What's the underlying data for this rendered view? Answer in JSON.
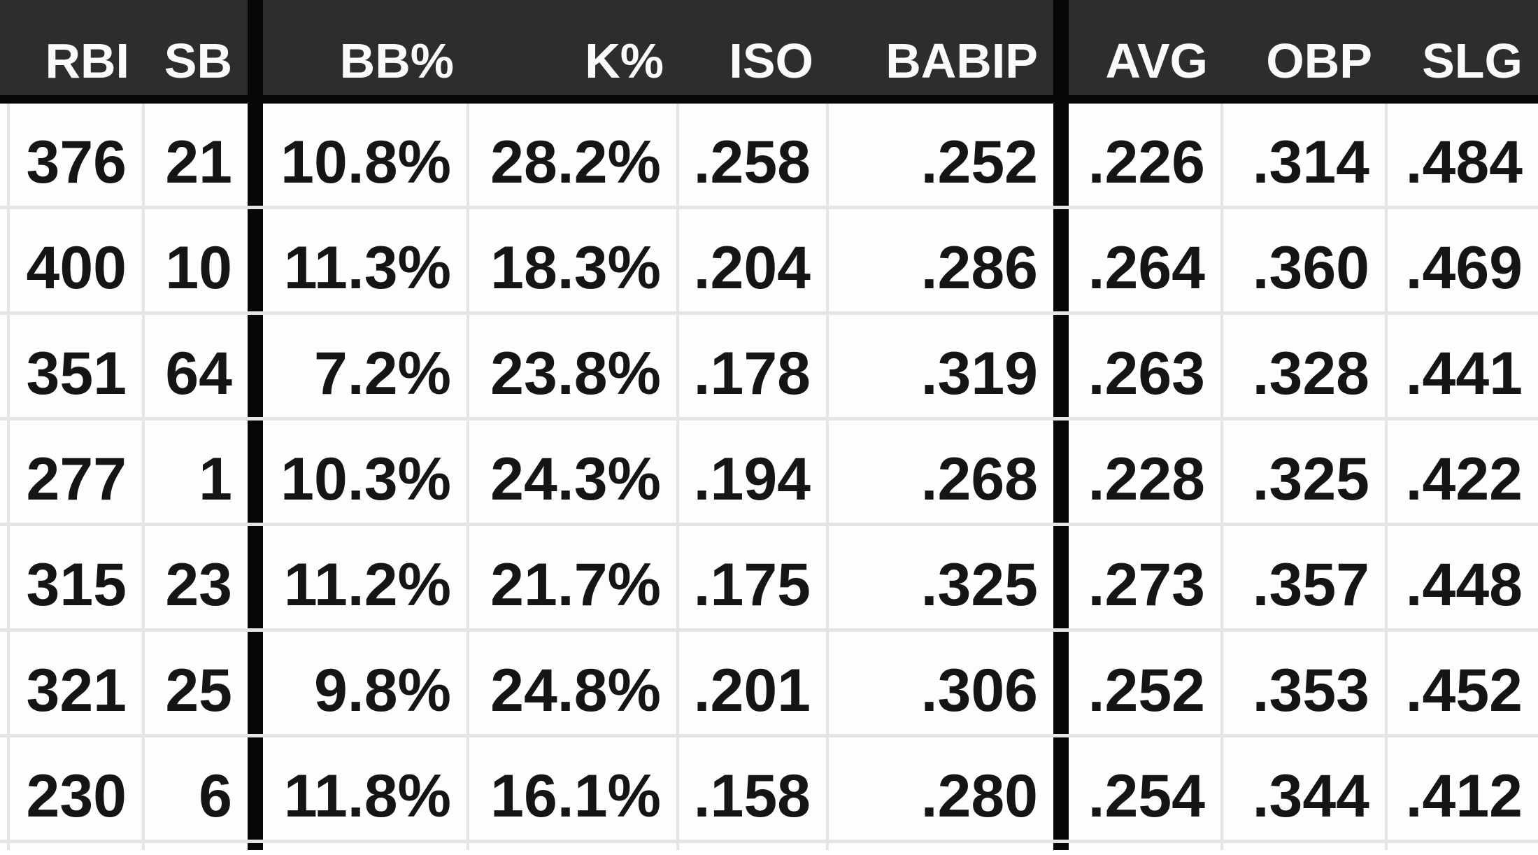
{
  "table": {
    "headers": [
      "RBI",
      "SB",
      "BB%",
      "K%",
      "ISO",
      "BABIP",
      "AVG",
      "OBP",
      "SLG"
    ],
    "column_groups": [
      [
        "RBI",
        "SB"
      ],
      [
        "BB%",
        "K%",
        "ISO",
        "BABIP"
      ],
      [
        "AVG",
        "OBP",
        "SLG"
      ]
    ],
    "rows": [
      [
        "376",
        "21",
        "10.8%",
        "28.2%",
        ".258",
        ".252",
        ".226",
        ".314",
        ".484"
      ],
      [
        "400",
        "10",
        "11.3%",
        "18.3%",
        ".204",
        ".286",
        ".264",
        ".360",
        ".469"
      ],
      [
        "351",
        "64",
        "7.2%",
        "23.8%",
        ".178",
        ".319",
        ".263",
        ".328",
        ".441"
      ],
      [
        "277",
        "1",
        "10.3%",
        "24.3%",
        ".194",
        ".268",
        ".228",
        ".325",
        ".422"
      ],
      [
        "315",
        "23",
        "11.2%",
        "21.7%",
        ".175",
        ".325",
        ".273",
        ".357",
        ".448"
      ],
      [
        "321",
        "25",
        "9.8%",
        "24.8%",
        ".201",
        ".306",
        ".252",
        ".353",
        ".452"
      ],
      [
        "230",
        "6",
        "11.8%",
        "16.1%",
        ".158",
        ".280",
        ".254",
        ".344",
        ".412"
      ]
    ]
  },
  "colors": {
    "header_bg": "#2d2d2d",
    "header_text": "#fafafa",
    "body_text": "#151515",
    "cell_bg": "#fdfdfd",
    "row_separator": "#e5e5e5",
    "group_divider": "#070707"
  }
}
